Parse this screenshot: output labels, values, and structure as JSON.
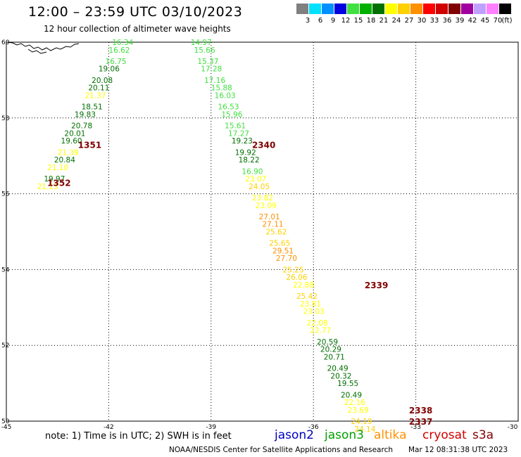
{
  "title": "12:00 – 23:59 UTC 03/10/2023",
  "subtitle": "12 hour collection of altimeter wave heights",
  "legend": {
    "unit": "(ft)",
    "bins": [
      {
        "label": "3",
        "color": "#808080"
      },
      {
        "label": "6",
        "color": "#00e0ff"
      },
      {
        "label": "9",
        "color": "#0090ff"
      },
      {
        "label": "12",
        "color": "#0000e0"
      },
      {
        "label": "15",
        "color": "#40e040"
      },
      {
        "label": "18",
        "color": "#00b000"
      },
      {
        "label": "21",
        "color": "#007000"
      },
      {
        "label": "24",
        "color": "#ffff00"
      },
      {
        "label": "27",
        "color": "#ffd000"
      },
      {
        "label": "30",
        "color": "#ff9000"
      },
      {
        "label": "33",
        "color": "#ff0000"
      },
      {
        "label": "36",
        "color": "#d00000"
      },
      {
        "label": "39",
        "color": "#800000"
      },
      {
        "label": "42",
        "color": "#a000a0"
      },
      {
        "label": "45",
        "color": "#c0a0ff"
      },
      {
        "label": "70",
        "color": "#ff80ff"
      },
      {
        "label": "",
        "color": "#000000"
      }
    ]
  },
  "axes": {
    "x_ticks": [
      -45,
      -42,
      -39,
      -36,
      -33,
      -30
    ],
    "x_tick_labels": [
      "-45",
      "-42",
      "-39",
      "-36",
      "-33",
      "-30"
    ],
    "y_ticks": [
      60,
      58,
      56,
      54,
      52,
      50
    ],
    "y_tick_labels": [
      "60",
      "58",
      "56",
      "54",
      "52",
      "50"
    ],
    "lon_range": [
      -45,
      -30
    ],
    "lat_range": [
      50,
      60
    ],
    "grid": "dotted"
  },
  "tracks": [
    {
      "id": "left",
      "times": [
        {
          "label": "1351",
          "lon": -42.9,
          "lat": 57.3
        },
        {
          "label": "1352",
          "lon": -43.8,
          "lat": 56.3
        }
      ],
      "points": [
        {
          "lon": -41.9,
          "lat": 60.0,
          "value": "16.34",
          "color": "#40e040"
        },
        {
          "lon": -42.0,
          "lat": 59.8,
          "value": "16.62",
          "color": "#40e040"
        },
        {
          "lon": -42.1,
          "lat": 59.5,
          "value": "16.75",
          "color": "#40e040"
        },
        {
          "lon": -42.3,
          "lat": 59.3,
          "value": "19.06",
          "color": "#007000"
        },
        {
          "lon": -42.5,
          "lat": 59.0,
          "value": "20.08",
          "color": "#007000"
        },
        {
          "lon": -42.6,
          "lat": 58.8,
          "value": "20.11",
          "color": "#007000"
        },
        {
          "lon": -42.7,
          "lat": 58.6,
          "value": "21.37",
          "color": "#ffff00"
        },
        {
          "lon": -42.8,
          "lat": 58.3,
          "value": "18.51",
          "color": "#007000"
        },
        {
          "lon": -43.0,
          "lat": 58.1,
          "value": "19.83",
          "color": "#007000"
        },
        {
          "lon": -43.1,
          "lat": 57.8,
          "value": "20.78",
          "color": "#007000"
        },
        {
          "lon": -43.3,
          "lat": 57.6,
          "value": "20.01",
          "color": "#007000"
        },
        {
          "lon": -43.4,
          "lat": 57.4,
          "value": "19.60",
          "color": "#007000"
        },
        {
          "lon": -43.5,
          "lat": 57.1,
          "value": "21.39",
          "color": "#ffff00"
        },
        {
          "lon": -43.6,
          "lat": 56.9,
          "value": "20.84",
          "color": "#007000"
        },
        {
          "lon": -43.8,
          "lat": 56.7,
          "value": "21.10",
          "color": "#ffff00"
        },
        {
          "lon": -43.9,
          "lat": 56.4,
          "value": "19.97",
          "color": "#007000"
        },
        {
          "lon": -44.1,
          "lat": 56.2,
          "value": "21.13",
          "color": "#ffff00"
        }
      ]
    },
    {
      "id": "right",
      "times": [
        {
          "label": "2340",
          "lon": -37.8,
          "lat": 57.3
        },
        {
          "label": "2339",
          "lon": -34.5,
          "lat": 53.6
        },
        {
          "label": "2338",
          "lon": -33.2,
          "lat": 50.3
        },
        {
          "label": "2337",
          "lon": -33.2,
          "lat": 50.0
        }
      ],
      "points": [
        {
          "lon": -39.6,
          "lat": 60.0,
          "value": "14.97",
          "color": "#40e040"
        },
        {
          "lon": -39.5,
          "lat": 59.8,
          "value": "15.66",
          "color": "#40e040"
        },
        {
          "lon": -39.4,
          "lat": 59.5,
          "value": "15.37",
          "color": "#40e040"
        },
        {
          "lon": -39.3,
          "lat": 59.3,
          "value": "17.28",
          "color": "#40e040"
        },
        {
          "lon": -39.2,
          "lat": 59.0,
          "value": "17.16",
          "color": "#40e040"
        },
        {
          "lon": -39.0,
          "lat": 58.8,
          "value": "15.88",
          "color": "#40e040"
        },
        {
          "lon": -38.9,
          "lat": 58.6,
          "value": "16.03",
          "color": "#40e040"
        },
        {
          "lon": -38.8,
          "lat": 58.3,
          "value": "16.53",
          "color": "#40e040"
        },
        {
          "lon": -38.7,
          "lat": 58.1,
          "value": "15.96",
          "color": "#40e040"
        },
        {
          "lon": -38.6,
          "lat": 57.8,
          "value": "15.61",
          "color": "#40e040"
        },
        {
          "lon": -38.5,
          "lat": 57.6,
          "value": "17.27",
          "color": "#40e040"
        },
        {
          "lon": -38.4,
          "lat": 57.4,
          "value": "19.23",
          "color": "#007000"
        },
        {
          "lon": -38.3,
          "lat": 57.1,
          "value": "19.92",
          "color": "#007000"
        },
        {
          "lon": -38.2,
          "lat": 56.9,
          "value": "18.22",
          "color": "#007000"
        },
        {
          "lon": -38.1,
          "lat": 56.6,
          "value": "16.90",
          "color": "#40e040"
        },
        {
          "lon": -38.0,
          "lat": 56.4,
          "value": "23.07",
          "color": "#ffff00"
        },
        {
          "lon": -37.9,
          "lat": 56.2,
          "value": "24.05",
          "color": "#ffd000"
        },
        {
          "lon": -37.8,
          "lat": 55.9,
          "value": "23.82",
          "color": "#ffff00"
        },
        {
          "lon": -37.7,
          "lat": 55.7,
          "value": "23.09",
          "color": "#ffff00"
        },
        {
          "lon": -37.6,
          "lat": 55.4,
          "value": "27.01",
          "color": "#ff9000"
        },
        {
          "lon": -37.5,
          "lat": 55.2,
          "value": "27.11",
          "color": "#ff9000"
        },
        {
          "lon": -37.4,
          "lat": 55.0,
          "value": "25.62",
          "color": "#ffd000"
        },
        {
          "lon": -37.3,
          "lat": 54.7,
          "value": "25.65",
          "color": "#ffd000"
        },
        {
          "lon": -37.2,
          "lat": 54.5,
          "value": "29.51",
          "color": "#ff9000"
        },
        {
          "lon": -37.1,
          "lat": 54.3,
          "value": "27.70",
          "color": "#ff9000"
        },
        {
          "lon": -36.9,
          "lat": 54.0,
          "value": "25.25",
          "color": "#ffd000"
        },
        {
          "lon": -36.8,
          "lat": 53.8,
          "value": "26.06",
          "color": "#ffd000"
        },
        {
          "lon": -36.6,
          "lat": 53.6,
          "value": "22.88",
          "color": "#ffff00"
        },
        {
          "lon": -36.5,
          "lat": 53.3,
          "value": "25.42",
          "color": "#ffd000"
        },
        {
          "lon": -36.4,
          "lat": 53.1,
          "value": "23.81",
          "color": "#ffff00"
        },
        {
          "lon": -36.3,
          "lat": 52.9,
          "value": "23.03",
          "color": "#ffff00"
        },
        {
          "lon": -36.2,
          "lat": 52.6,
          "value": "22.08",
          "color": "#ffff00"
        },
        {
          "lon": -36.1,
          "lat": 52.4,
          "value": "22.77",
          "color": "#ffff00"
        },
        {
          "lon": -35.9,
          "lat": 52.1,
          "value": "20.59",
          "color": "#007000"
        },
        {
          "lon": -35.8,
          "lat": 51.9,
          "value": "20.29",
          "color": "#007000"
        },
        {
          "lon": -35.7,
          "lat": 51.7,
          "value": "20.71",
          "color": "#007000"
        },
        {
          "lon": -35.6,
          "lat": 51.4,
          "value": "20.49",
          "color": "#007000"
        },
        {
          "lon": -35.5,
          "lat": 51.2,
          "value": "20.32",
          "color": "#007000"
        },
        {
          "lon": -35.3,
          "lat": 51.0,
          "value": "19.55",
          "color": "#007000"
        },
        {
          "lon": -35.2,
          "lat": 50.7,
          "value": "20.49",
          "color": "#007000"
        },
        {
          "lon": -35.1,
          "lat": 50.5,
          "value": "22.16",
          "color": "#ffff00"
        },
        {
          "lon": -35.0,
          "lat": 50.3,
          "value": "23.69",
          "color": "#ffff00"
        },
        {
          "lon": -34.9,
          "lat": 50.0,
          "value": "24.19",
          "color": "#ffd000"
        },
        {
          "lon": -34.8,
          "lat": 49.8,
          "value": "24.14",
          "color": "#ffd000"
        }
      ]
    }
  ],
  "note": "note: 1) Time is in UTC; 2) SWH is in feet",
  "satellites": [
    {
      "label": "jason2",
      "color": "#0000c0"
    },
    {
      "label": "jason3",
      "color": "#00a000"
    },
    {
      "label": "altika",
      "color": "#ff9000"
    },
    {
      "label": "cryosat",
      "color": "#d00000"
    },
    {
      "label": "s3a",
      "color": "#800000"
    }
  ],
  "footer": {
    "center": "NOAA/NESDIS Center for Satellite Applications and Research",
    "time": "Mar 12 08:31:38 UTC 2023"
  }
}
